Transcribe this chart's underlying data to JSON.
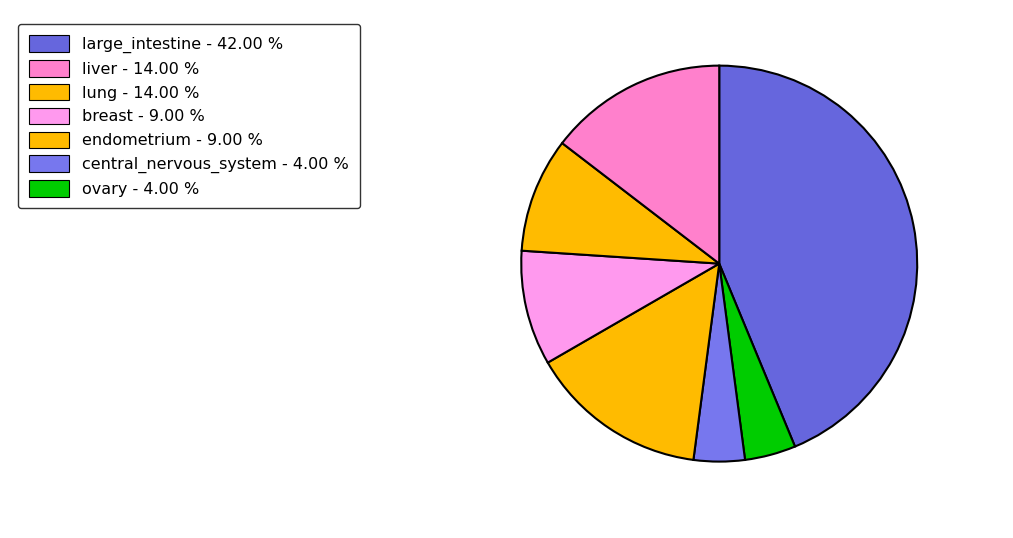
{
  "labels": [
    "large_intestine",
    "ovary",
    "central_nervous_system",
    "lung",
    "breast",
    "endometrium",
    "liver"
  ],
  "values": [
    42.0,
    4.0,
    4.0,
    14.0,
    9.0,
    9.0,
    14.0
  ],
  "colors": [
    "#6666dd",
    "#00cc00",
    "#7777ee",
    "#ffbb00",
    "#ff99ee",
    "#ffbb00",
    "#ff80cc"
  ],
  "legend_labels": [
    "large_intestine - 42.00 %",
    "liver - 14.00 %",
    "lung - 14.00 %",
    "breast - 9.00 %",
    "endometrium - 9.00 %",
    "central_nervous_system - 4.00 %",
    "ovary - 4.00 %"
  ],
  "legend_colors": [
    "#6666dd",
    "#ff80cc",
    "#ffbb00",
    "#ff99ee",
    "#ffbb00",
    "#7777ee",
    "#00cc00"
  ],
  "startangle": 90,
  "background_color": "#ffffff",
  "figsize": [
    10.13,
    5.38
  ],
  "dpi": 100
}
